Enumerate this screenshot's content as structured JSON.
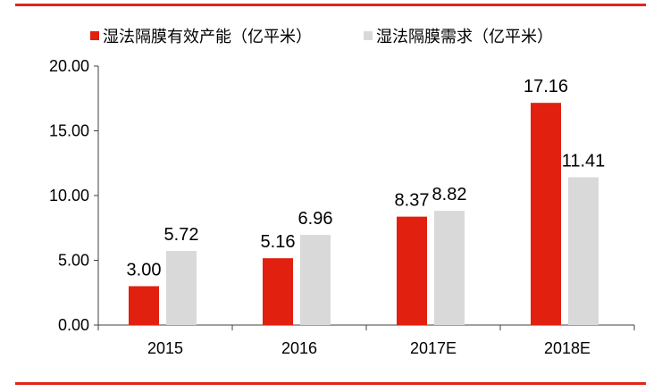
{
  "colors": {
    "rule": "#E0261C",
    "series_capacity": "#E1200F",
    "series_demand": "#D9D9D9",
    "axis": "#404040",
    "text": "#000000"
  },
  "chart_data": {
    "type": "bar",
    "title": "",
    "xlabel": "",
    "ylabel": "",
    "categories": [
      "2015",
      "2016",
      "2017E",
      "2018E"
    ],
    "series": [
      {
        "name": "湿法隔膜有效产能（亿平米）",
        "values": [
          3.0,
          5.16,
          8.37,
          17.16
        ],
        "labels": [
          "3.00",
          "5.16",
          "8.37",
          "17.16"
        ]
      },
      {
        "name": "湿法隔膜需求（亿平米）",
        "values": [
          5.72,
          6.96,
          8.82,
          11.41
        ],
        "labels": [
          "5.72",
          "6.96",
          "8.82",
          "11.41"
        ]
      }
    ],
    "ylim": [
      0,
      20
    ],
    "yticks": [
      "0.00",
      "5.00",
      "10.00",
      "15.00",
      "20.00"
    ],
    "grid": false,
    "legend_position": "top"
  }
}
